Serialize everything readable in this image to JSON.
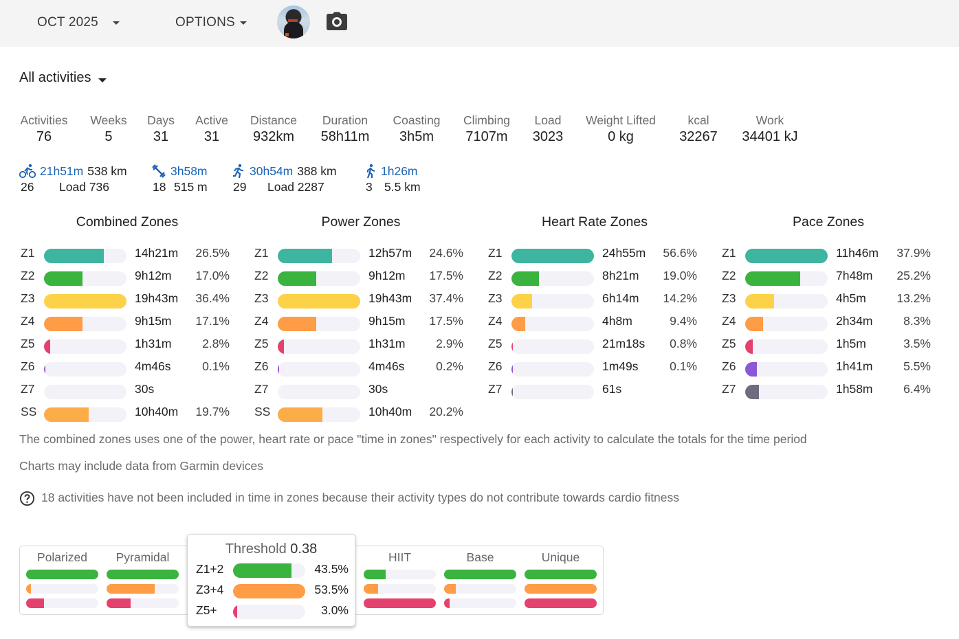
{
  "header": {
    "month_label": "OCT 2025",
    "options_label": "OPTIONS"
  },
  "filter": {
    "label": "All activities"
  },
  "colors": {
    "z1": "#3db5a0",
    "z2": "#3bb33f",
    "z3": "#fdd249",
    "z4": "#fe9d46",
    "z5": "#e5416f",
    "z6": "#8b58d6",
    "z7": "#706b7e",
    "ss": "#fdad47",
    "link_blue": "#1e63b5",
    "track": "#f2f2f8"
  },
  "stats": [
    {
      "label": "Activities",
      "value": "76"
    },
    {
      "label": "Weeks",
      "value": "5"
    },
    {
      "label": "Days",
      "value": "31"
    },
    {
      "label": "Active",
      "value": "31"
    },
    {
      "label": "Distance",
      "value": "932km"
    },
    {
      "label": "Duration",
      "value": "58h11m"
    },
    {
      "label": "Coasting",
      "value": "3h5m"
    },
    {
      "label": "Climbing",
      "value": "7107m"
    },
    {
      "label": "Load",
      "value": "3023"
    },
    {
      "label": "Weight Lifted",
      "value": "0 kg"
    },
    {
      "label": "kcal",
      "value": "32267"
    },
    {
      "label": "Work",
      "value": "34401 kJ"
    }
  ],
  "activity_types": [
    {
      "icon": "bike-icon",
      "time": "21h51m",
      "distance": "538 km",
      "count": "26",
      "extra": "Load 736"
    },
    {
      "icon": "weight-training-icon",
      "time": "3h58m",
      "distance": "",
      "count": "18",
      "extra": "515 m"
    },
    {
      "icon": "run-icon",
      "time": "30h54m",
      "distance": "388 km",
      "count": "29",
      "extra": "Load 2287"
    },
    {
      "icon": "walk-icon",
      "time": "1h26m",
      "distance": "",
      "count": "3",
      "extra": "5.5 km"
    }
  ],
  "zones": [
    {
      "title": "Combined Zones",
      "rows": [
        {
          "zone": "Z1",
          "time": "14h21m",
          "pct": "26.5%",
          "fill": 0.727,
          "color": "#3db5a0"
        },
        {
          "zone": "Z2",
          "time": "9h12m",
          "pct": "17.0%",
          "fill": 0.467,
          "color": "#3bb33f"
        },
        {
          "zone": "Z3",
          "time": "19h43m",
          "pct": "36.4%",
          "fill": 1.0,
          "color": "#fdd249"
        },
        {
          "zone": "Z4",
          "time": "9h15m",
          "pct": "17.1%",
          "fill": 0.47,
          "color": "#fe9d46"
        },
        {
          "zone": "Z5",
          "time": "1h31m",
          "pct": "2.8%",
          "fill": 0.077,
          "color": "#e5416f"
        },
        {
          "zone": "Z6",
          "time": "4m46s",
          "pct": "0.1%",
          "fill": 0.004,
          "color": "#8b58d6"
        },
        {
          "zone": "Z7",
          "time": "30s",
          "pct": "",
          "fill": 0.0,
          "color": "#706b7e"
        },
        {
          "zone": "SS",
          "time": "10h40m",
          "pct": "19.7%",
          "fill": 0.541,
          "color": "#fdad47"
        }
      ]
    },
    {
      "title": "Power Zones",
      "rows": [
        {
          "zone": "Z1",
          "time": "12h57m",
          "pct": "24.6%",
          "fill": 0.658,
          "color": "#3db5a0"
        },
        {
          "zone": "Z2",
          "time": "9h12m",
          "pct": "17.5%",
          "fill": 0.468,
          "color": "#3bb33f"
        },
        {
          "zone": "Z3",
          "time": "19h43m",
          "pct": "37.4%",
          "fill": 1.0,
          "color": "#fdd249"
        },
        {
          "zone": "Z4",
          "time": "9h15m",
          "pct": "17.5%",
          "fill": 0.468,
          "color": "#fe9d46"
        },
        {
          "zone": "Z5",
          "time": "1h31m",
          "pct": "2.9%",
          "fill": 0.078,
          "color": "#e5416f"
        },
        {
          "zone": "Z6",
          "time": "4m46s",
          "pct": "0.2%",
          "fill": 0.005,
          "color": "#8b58d6"
        },
        {
          "zone": "Z7",
          "time": "30s",
          "pct": "",
          "fill": 0.0,
          "color": "#706b7e"
        },
        {
          "zone": "SS",
          "time": "10h40m",
          "pct": "20.2%",
          "fill": 0.54,
          "color": "#fdad47"
        }
      ]
    },
    {
      "title": "Heart Rate Zones",
      "rows": [
        {
          "zone": "Z1",
          "time": "24h55m",
          "pct": "56.6%",
          "fill": 1.0,
          "color": "#3db5a0"
        },
        {
          "zone": "Z2",
          "time": "8h21m",
          "pct": "19.0%",
          "fill": 0.336,
          "color": "#3bb33f"
        },
        {
          "zone": "Z3",
          "time": "6h14m",
          "pct": "14.2%",
          "fill": 0.251,
          "color": "#fdd249"
        },
        {
          "zone": "Z4",
          "time": "4h8m",
          "pct": "9.4%",
          "fill": 0.166,
          "color": "#fe9d46"
        },
        {
          "zone": "Z5",
          "time": "21m18s",
          "pct": "0.8%",
          "fill": 0.014,
          "color": "#e5416f"
        },
        {
          "zone": "Z6",
          "time": "1m49s",
          "pct": "0.1%",
          "fill": 0.004,
          "color": "#8b58d6"
        },
        {
          "zone": "Z7",
          "time": "61s",
          "pct": "",
          "fill": 0.004,
          "color": "#706b7e"
        }
      ]
    },
    {
      "title": "Pace Zones",
      "rows": [
        {
          "zone": "Z1",
          "time": "11h46m",
          "pct": "37.9%",
          "fill": 1.0,
          "color": "#3db5a0"
        },
        {
          "zone": "Z2",
          "time": "7h48m",
          "pct": "25.2%",
          "fill": 0.665,
          "color": "#3bb33f"
        },
        {
          "zone": "Z3",
          "time": "4h5m",
          "pct": "13.2%",
          "fill": 0.348,
          "color": "#fdd249"
        },
        {
          "zone": "Z4",
          "time": "2h34m",
          "pct": "8.3%",
          "fill": 0.219,
          "color": "#fe9d46"
        },
        {
          "zone": "Z5",
          "time": "1h5m",
          "pct": "3.5%",
          "fill": 0.092,
          "color": "#e5416f"
        },
        {
          "zone": "Z6",
          "time": "1h41m",
          "pct": "5.5%",
          "fill": 0.145,
          "color": "#8b58d6"
        },
        {
          "zone": "Z7",
          "time": "1h58m",
          "pct": "6.4%",
          "fill": 0.169,
          "color": "#706b7e"
        }
      ]
    }
  ],
  "notes": {
    "combined": "The combined zones uses one of the power, heart rate or pace \"time in zones\" respectively for each activity to calculate the totals for the time period",
    "garmin": "Charts may include data from Garmin devices",
    "excluded": "18 activities have not been included in time in zones because their activity types do not contribute towards cardio fitness"
  },
  "distribution": {
    "models": [
      {
        "name": "Polarized",
        "bars": [
          1.0,
          0.07,
          0.25
        ]
      },
      {
        "name": "Pyramidal",
        "bars": [
          1.0,
          0.67,
          0.33
        ]
      },
      {
        "name": "Threshold",
        "bars": [
          0.8,
          1.0,
          0.05
        ]
      },
      {
        "name": "HIIT",
        "bars": [
          0.3,
          0.2,
          1.0
        ]
      },
      {
        "name": "Base",
        "bars": [
          1.0,
          0.16,
          0.08
        ]
      },
      {
        "name": "Unique",
        "bars": [
          1.0,
          1.0,
          1.0
        ]
      }
    ],
    "bar_colors": [
      "#3bb33f",
      "#fe9d46",
      "#e5416f"
    ]
  },
  "tooltip": {
    "title": "Threshold",
    "score": "0.38",
    "rows": [
      {
        "label": "Z1+2",
        "pct": "43.5%",
        "fill": 0.81,
        "color": "#3bb33f"
      },
      {
        "label": "Z3+4",
        "pct": "53.5%",
        "fill": 1.0,
        "color": "#fe9d46"
      },
      {
        "label": "Z5+",
        "pct": "3.0%",
        "fill": 0.056,
        "color": "#e5416f"
      }
    ]
  }
}
